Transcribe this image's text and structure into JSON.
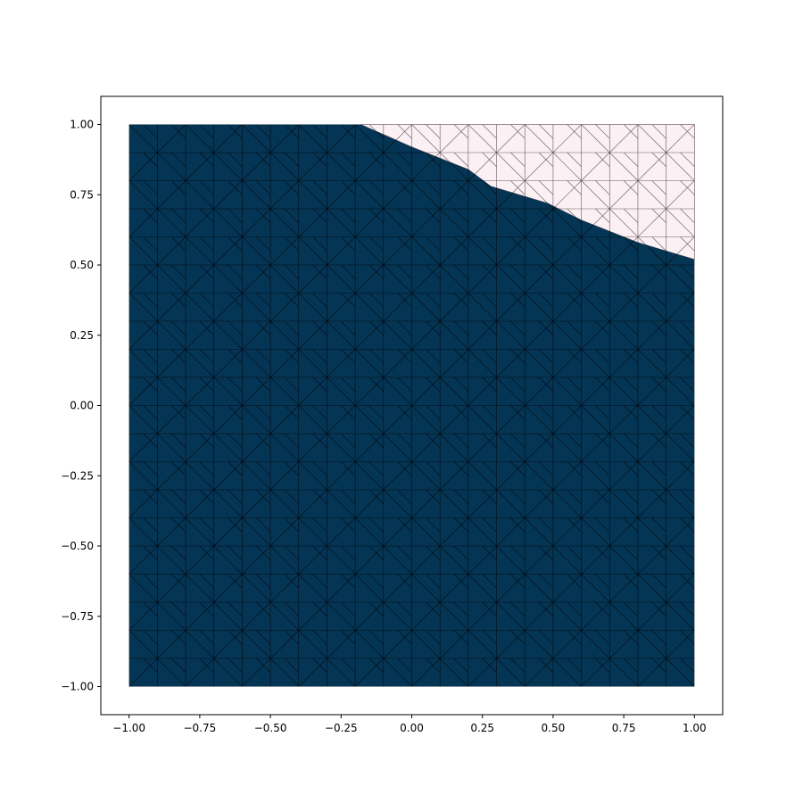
{
  "chart_data": {
    "type": "mesh",
    "title": "",
    "xlabel": "",
    "ylabel": "",
    "xlim": [
      -1.1,
      1.1
    ],
    "ylim": [
      -1.1,
      1.1
    ],
    "domain": {
      "x": [
        -1.0,
        1.0
      ],
      "y": [
        -1.0,
        1.0
      ]
    },
    "mesh_divisions": 20,
    "grid": false,
    "legend": "none",
    "x_ticks": [
      -1.0,
      -0.75,
      -0.5,
      -0.25,
      0.0,
      0.25,
      0.5,
      0.75,
      1.0
    ],
    "y_ticks": [
      -1.0,
      -0.75,
      -0.5,
      -0.25,
      0.0,
      0.25,
      0.5,
      0.75,
      1.0
    ],
    "x_tick_labels": [
      "−1.00",
      "−0.75",
      "−0.50",
      "−0.25",
      "0.00",
      "0.25",
      "0.50",
      "0.75",
      "1.00"
    ],
    "y_tick_labels": [
      "−1.00",
      "−0.75",
      "−0.50",
      "−0.25",
      "0.00",
      "0.25",
      "0.50",
      "0.75",
      "1.00"
    ],
    "interface": [
      [
        -0.18,
        1.0
      ],
      [
        0.0,
        0.92
      ],
      [
        0.2,
        0.84
      ],
      [
        0.28,
        0.78
      ],
      [
        0.48,
        0.72
      ],
      [
        0.6,
        0.66
      ],
      [
        0.75,
        0.6
      ],
      [
        0.8,
        0.58
      ],
      [
        1.0,
        0.52
      ]
    ],
    "colors": {
      "filled_region": "#053554",
      "empty_region": "#fbf0f3",
      "mesh_line_filled": "#000000",
      "mesh_line_empty": "#3a2a34"
    }
  }
}
